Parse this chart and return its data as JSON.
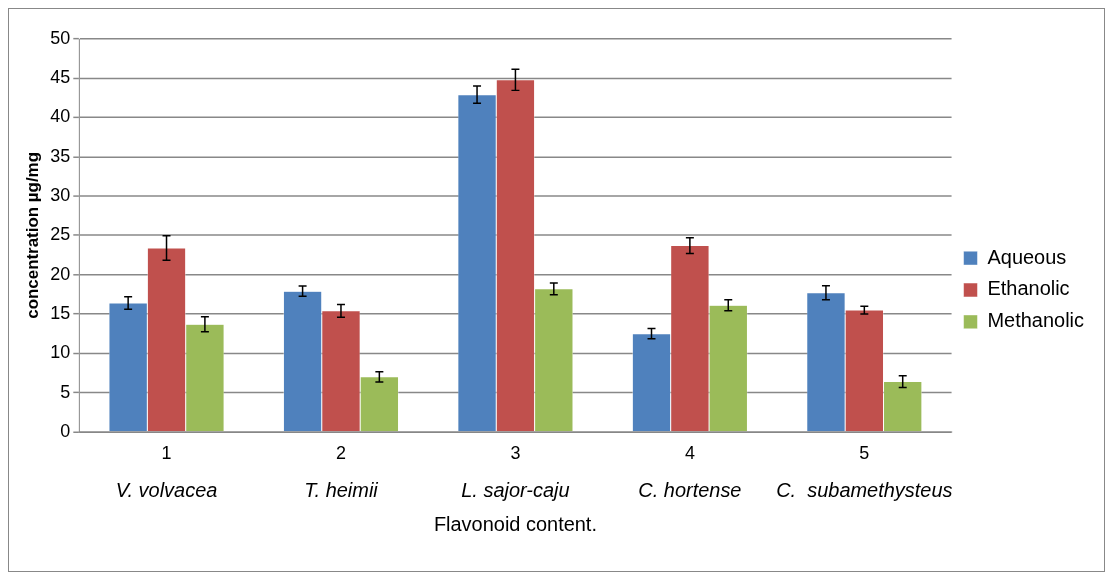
{
  "chart_data": {
    "type": "bar",
    "xlabel": "Flavonoid content.",
    "ylabel": "concentration µg/mg",
    "categories": [
      "1",
      "2",
      "3",
      "4",
      "5"
    ],
    "series": [
      {
        "name": "Aqueous",
        "color": "#4f81bd",
        "values": [
          16.4,
          17.9,
          42.9,
          12.5,
          17.7
        ],
        "errors": [
          0.8,
          0.65,
          1.1,
          0.65,
          0.9
        ]
      },
      {
        "name": "Ethanolic",
        "color": "#c0504d",
        "values": [
          23.4,
          15.4,
          44.8,
          23.7,
          15.5
        ],
        "errors": [
          1.55,
          0.8,
          1.35,
          1.0,
          0.5
        ]
      },
      {
        "name": "Methanolic",
        "color": "#9bbb59",
        "values": [
          13.7,
          7.0,
          18.2,
          16.1,
          6.4
        ],
        "errors": [
          0.95,
          0.65,
          0.75,
          0.7,
          0.75
        ]
      }
    ],
    "annotations": [
      "V. volvacea",
      "T. heimii",
      "L. sajor-caju",
      "C. hortense",
      "C.  subamethysteus"
    ],
    "ylim": [
      0,
      50
    ],
    "yticks": [
      0,
      5,
      10,
      15,
      20,
      25,
      30,
      35,
      40,
      45,
      50
    ],
    "grid": "y",
    "legend": "right"
  }
}
